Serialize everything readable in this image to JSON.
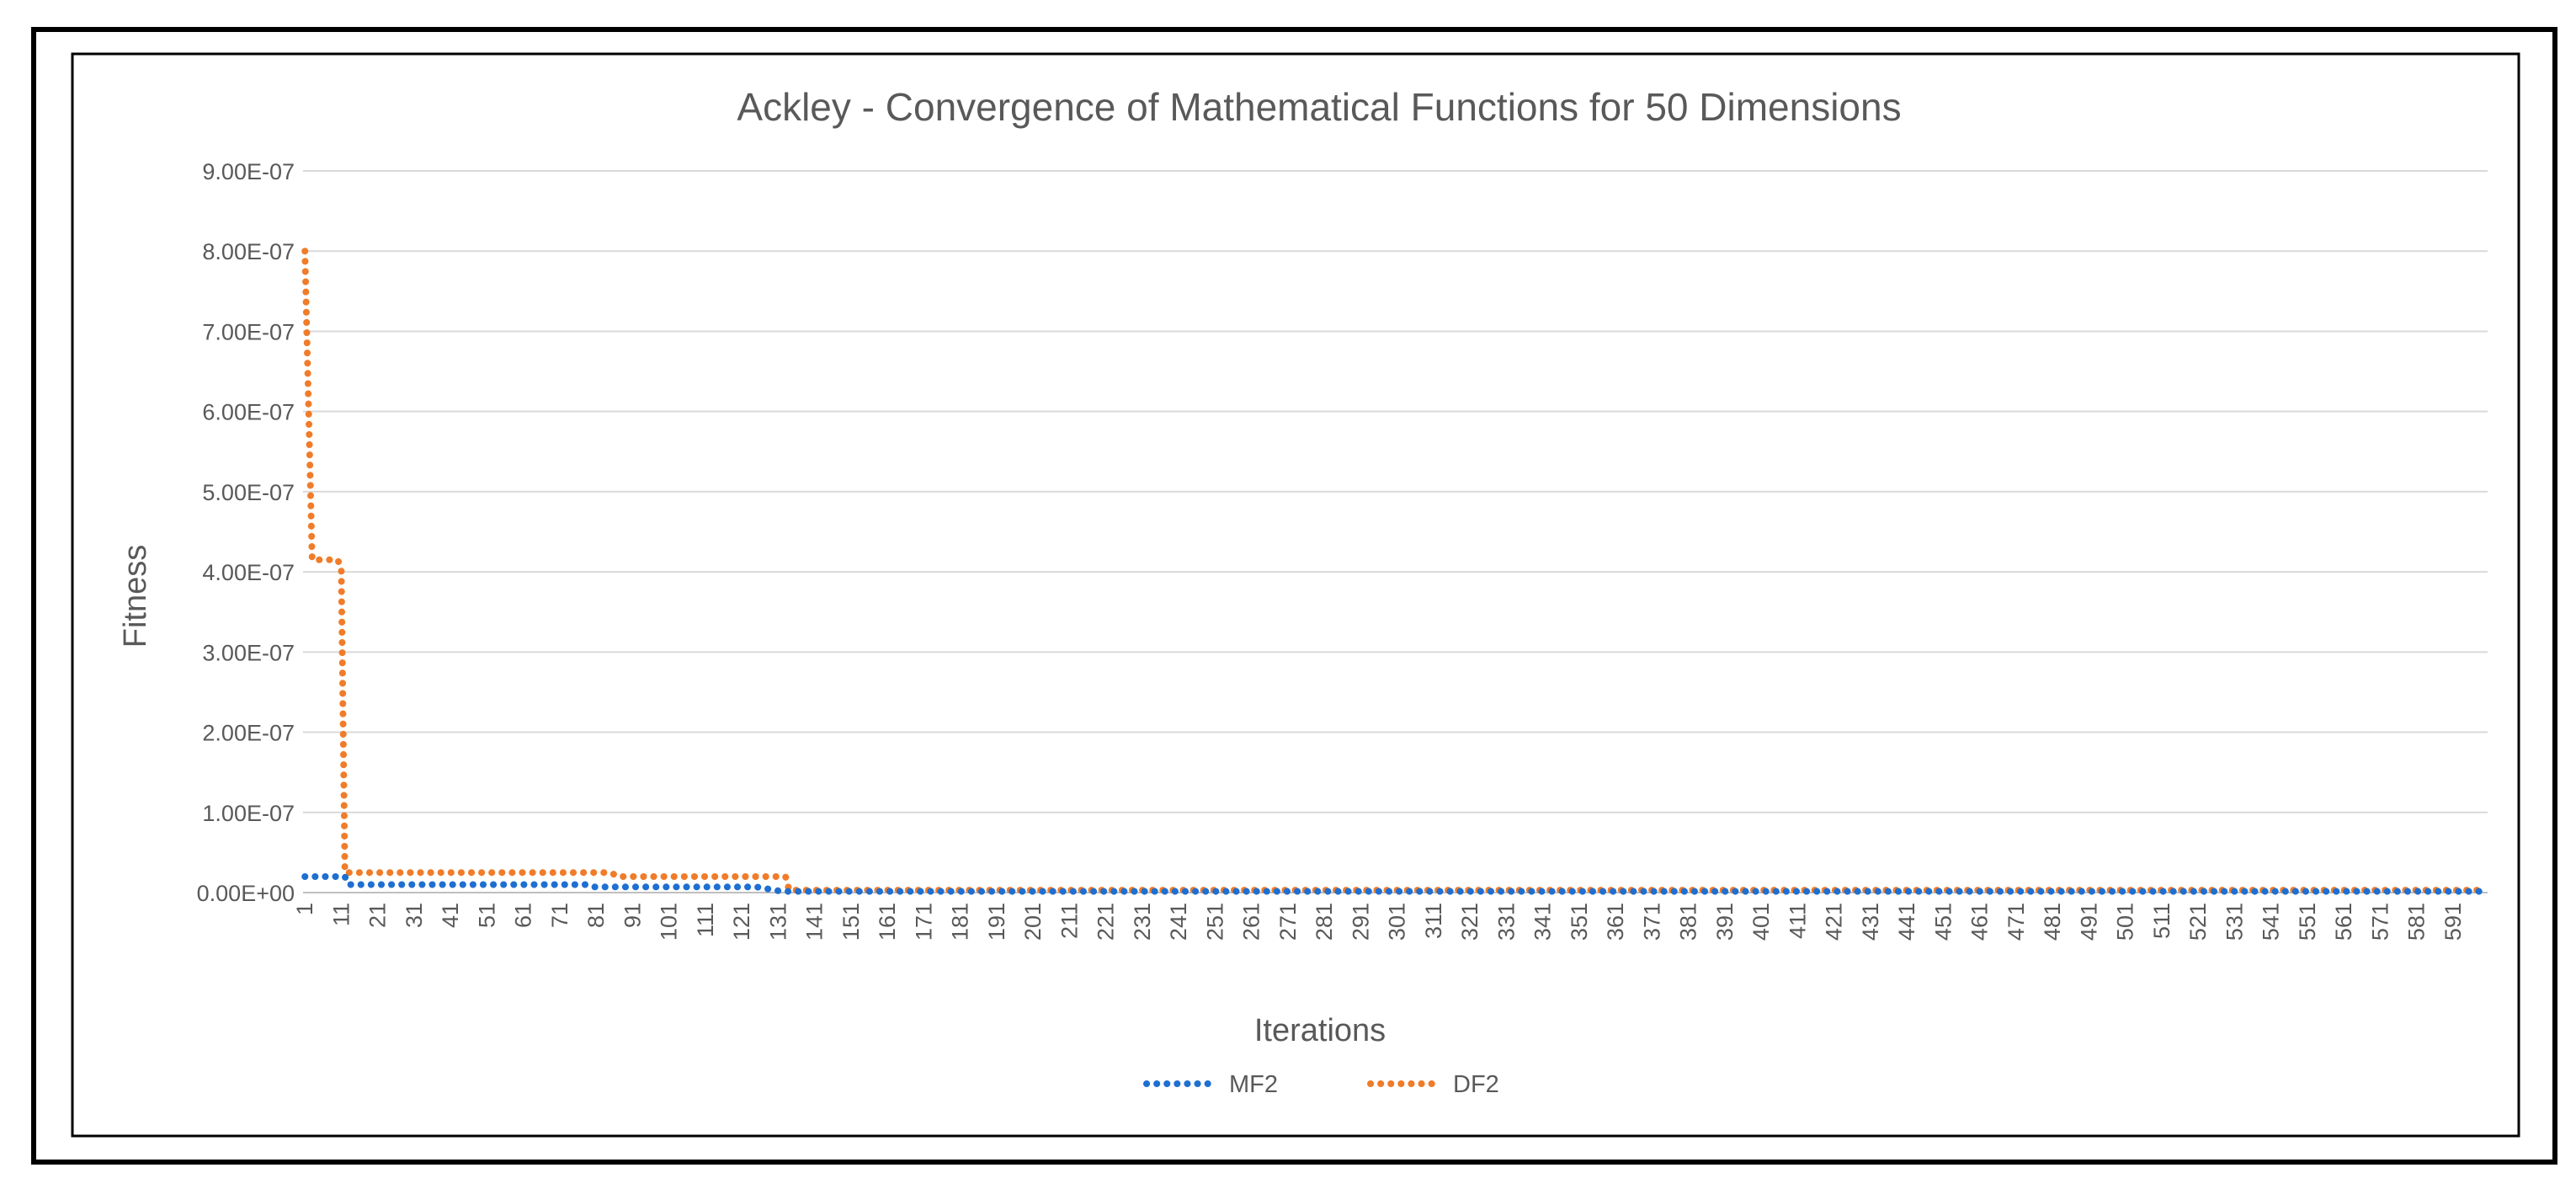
{
  "chart_data": {
    "type": "line",
    "title": "Ackley - Convergence of Mathematical Functions for 50 Dimensions",
    "xlabel": "Iterations",
    "ylabel": "Fitness",
    "ylim": [
      0,
      9e-07
    ],
    "yticks": [
      "0.00E+00",
      "1.00E-07",
      "2.00E-07",
      "3.00E-07",
      "4.00E-07",
      "5.00E-07",
      "6.00E-07",
      "7.00E-07",
      "8.00E-07",
      "9.00E-07"
    ],
    "x_range": [
      1,
      600
    ],
    "xtick_labels": [
      "1",
      "11",
      "21",
      "31",
      "41",
      "51",
      "61",
      "71",
      "81",
      "91",
      "101",
      "111",
      "121",
      "131",
      "141",
      "151",
      "161",
      "171",
      "181",
      "191",
      "201",
      "211",
      "221",
      "231",
      "241",
      "251",
      "261",
      "271",
      "281",
      "291",
      "301",
      "311",
      "321",
      "331",
      "341",
      "351",
      "361",
      "371",
      "381",
      "391",
      "401",
      "411",
      "421",
      "431",
      "441",
      "451",
      "461",
      "471",
      "481",
      "491",
      "501",
      "511",
      "521",
      "531",
      "541",
      "551",
      "561",
      "571",
      "581",
      "591"
    ],
    "grid": true,
    "legend_position": "bottom",
    "series": [
      {
        "name": "MF2",
        "color": "#1f6fd1",
        "style": "dotted",
        "points": [
          [
            1,
            2e-08
          ],
          [
            12,
            2e-08
          ],
          [
            13,
            1e-08
          ],
          [
            78,
            1e-08
          ],
          [
            80,
            7e-09
          ],
          [
            125,
            7e-09
          ],
          [
            132,
            1.5e-09
          ],
          [
            600,
            1.5e-09
          ]
        ]
      },
      {
        "name": "DF2",
        "color": "#f07c2a",
        "style": "dotted",
        "points": [
          [
            1,
            8e-07
          ],
          [
            3,
            4.15e-07
          ],
          [
            10,
            4.15e-07
          ],
          [
            11,
            4.05e-07
          ],
          [
            12,
            2.5e-08
          ],
          [
            85,
            2.5e-08
          ],
          [
            87,
            2e-08
          ],
          [
            133,
            2e-08
          ],
          [
            134,
            3e-09
          ],
          [
            600,
            3e-09
          ]
        ]
      }
    ]
  }
}
